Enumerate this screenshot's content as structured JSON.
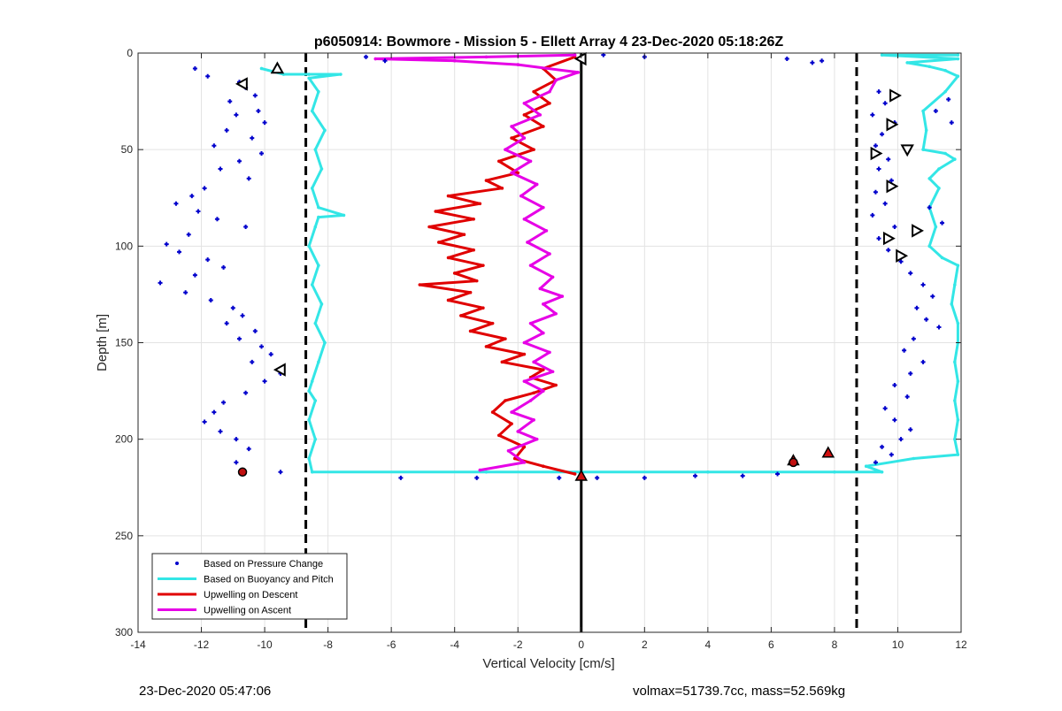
{
  "chart_data": {
    "type": "scatter",
    "title": "p6050914: Bowmore - Mission 5 - Ellett Array 4 23-Dec-2020 05:18:26Z",
    "xlabel": "Vertical Velocity [cm/s]",
    "ylabel": "Depth [m]",
    "xlim": [
      -14,
      12
    ],
    "ylim": [
      0,
      300
    ],
    "y_reversed": true,
    "grid": true,
    "legend_position": "bottom-left",
    "xticks": [
      -14,
      -12,
      -10,
      -8,
      -6,
      -4,
      -2,
      0,
      2,
      4,
      6,
      8,
      10,
      12
    ],
    "yticks": [
      0,
      50,
      100,
      150,
      200,
      250,
      300
    ],
    "series": [
      {
        "name": "Based on Pressure Change",
        "style": "points",
        "color": "#0000cc",
        "points": [
          [
            -12.2,
            8
          ],
          [
            -11.8,
            12
          ],
          [
            -10.8,
            15
          ],
          [
            -10.6,
            18
          ],
          [
            -10.3,
            22
          ],
          [
            -11.1,
            25
          ],
          [
            -10.2,
            30
          ],
          [
            -10.9,
            32
          ],
          [
            -10.0,
            36
          ],
          [
            -11.2,
            40
          ],
          [
            -10.4,
            44
          ],
          [
            -11.6,
            48
          ],
          [
            -10.1,
            52
          ],
          [
            -10.8,
            56
          ],
          [
            -11.4,
            60
          ],
          [
            -10.5,
            65
          ],
          [
            -11.9,
            70
          ],
          [
            -12.3,
            74
          ],
          [
            -12.8,
            78
          ],
          [
            -12.1,
            82
          ],
          [
            -11.5,
            86
          ],
          [
            -10.6,
            90
          ],
          [
            -12.4,
            94
          ],
          [
            -13.1,
            99
          ],
          [
            -12.7,
            103
          ],
          [
            -11.8,
            107
          ],
          [
            -11.3,
            111
          ],
          [
            -12.2,
            115
          ],
          [
            -13.3,
            119
          ],
          [
            -12.5,
            124
          ],
          [
            -11.7,
            128
          ],
          [
            -11.0,
            132
          ],
          [
            -10.7,
            136
          ],
          [
            -11.2,
            140
          ],
          [
            -10.3,
            144
          ],
          [
            -10.8,
            148
          ],
          [
            -10.1,
            152
          ],
          [
            -9.8,
            156
          ],
          [
            -10.4,
            160
          ],
          [
            -9.5,
            166
          ],
          [
            -10.0,
            170
          ],
          [
            -10.6,
            176
          ],
          [
            -11.3,
            181
          ],
          [
            -11.6,
            186
          ],
          [
            -11.9,
            191
          ],
          [
            -11.4,
            196
          ],
          [
            -10.9,
            200
          ],
          [
            -10.5,
            205
          ],
          [
            -10.9,
            212
          ],
          [
            -10.7,
            217
          ],
          [
            -9.5,
            217
          ],
          [
            -6.8,
            2
          ],
          [
            -6.2,
            4
          ],
          [
            -5.7,
            220
          ],
          [
            -3.3,
            220
          ],
          [
            -0.7,
            220
          ],
          [
            0.5,
            220
          ],
          [
            2.0,
            220
          ],
          [
            3.6,
            219
          ],
          [
            5.1,
            219
          ],
          [
            6.2,
            218
          ],
          [
            0.7,
            1
          ],
          [
            2.0,
            2
          ],
          [
            6.5,
            3
          ],
          [
            7.3,
            5
          ],
          [
            7.6,
            4
          ],
          [
            9.4,
            20
          ],
          [
            9.6,
            26
          ],
          [
            9.2,
            32
          ],
          [
            9.9,
            36
          ],
          [
            9.5,
            42
          ],
          [
            9.3,
            48
          ],
          [
            9.7,
            55
          ],
          [
            9.4,
            60
          ],
          [
            9.8,
            66
          ],
          [
            9.3,
            72
          ],
          [
            9.6,
            78
          ],
          [
            9.2,
            84
          ],
          [
            9.9,
            90
          ],
          [
            9.4,
            96
          ],
          [
            9.7,
            102
          ],
          [
            10.1,
            108
          ],
          [
            10.4,
            114
          ],
          [
            10.8,
            120
          ],
          [
            11.1,
            126
          ],
          [
            10.6,
            132
          ],
          [
            10.9,
            138
          ],
          [
            11.3,
            142
          ],
          [
            10.5,
            148
          ],
          [
            10.2,
            154
          ],
          [
            10.8,
            160
          ],
          [
            10.4,
            166
          ],
          [
            9.9,
            172
          ],
          [
            10.3,
            178
          ],
          [
            9.6,
            184
          ],
          [
            9.9,
            190
          ],
          [
            10.4,
            195
          ],
          [
            10.1,
            200
          ],
          [
            9.5,
            204
          ],
          [
            9.8,
            208
          ],
          [
            9.3,
            212
          ],
          [
            11.6,
            24
          ],
          [
            11.2,
            30
          ],
          [
            11.7,
            36
          ],
          [
            11.0,
            80
          ],
          [
            11.4,
            88
          ]
        ]
      },
      {
        "name": "Based on Buoyancy and Pitch",
        "style": "line",
        "color": "#33e6e6",
        "points": [
          [
            -10.1,
            8
          ],
          [
            -9.4,
            11
          ],
          [
            -8.6,
            11
          ],
          [
            -7.6,
            11
          ],
          [
            -8.6,
            13
          ],
          [
            -8.3,
            20
          ],
          [
            -8.5,
            30
          ],
          [
            -8.1,
            40
          ],
          [
            -8.4,
            50
          ],
          [
            -8.2,
            60
          ],
          [
            -8.5,
            70
          ],
          [
            -8.3,
            80
          ],
          [
            -7.5,
            84
          ],
          [
            -8.3,
            85
          ],
          [
            -8.4,
            90
          ],
          [
            -8.6,
            100
          ],
          [
            -8.3,
            110
          ],
          [
            -8.5,
            120
          ],
          [
            -8.2,
            130
          ],
          [
            -8.4,
            140
          ],
          [
            -8.1,
            150
          ],
          [
            -8.3,
            160
          ],
          [
            -8.5,
            170
          ],
          [
            -8.6,
            175
          ],
          [
            -8.4,
            180
          ],
          [
            -8.6,
            190
          ],
          [
            -8.4,
            200
          ],
          [
            -8.6,
            210
          ],
          [
            -8.5,
            217
          ],
          [
            -3.0,
            217
          ],
          [
            0.0,
            217
          ],
          [
            4.0,
            217
          ],
          [
            8.0,
            217
          ],
          [
            9.5,
            217
          ],
          [
            9.0,
            214
          ],
          [
            10.5,
            210
          ],
          [
            11.9,
            208
          ],
          [
            11.8,
            200
          ],
          [
            11.9,
            190
          ],
          [
            11.8,
            180
          ],
          [
            11.9,
            170
          ],
          [
            11.8,
            160
          ],
          [
            11.9,
            150
          ],
          [
            11.9,
            140
          ],
          [
            11.7,
            130
          ],
          [
            11.8,
            120
          ],
          [
            11.9,
            110
          ],
          [
            11.4,
            106
          ],
          [
            11.0,
            100
          ],
          [
            11.2,
            90
          ],
          [
            11.0,
            80
          ],
          [
            11.3,
            70
          ],
          [
            11.0,
            65
          ],
          [
            11.3,
            60
          ],
          [
            11.8,
            55
          ],
          [
            11.5,
            52
          ],
          [
            10.8,
            50
          ],
          [
            10.9,
            40
          ],
          [
            10.8,
            30
          ],
          [
            11.5,
            20
          ],
          [
            11.9,
            12
          ],
          [
            11.5,
            9
          ],
          [
            11.0,
            7
          ],
          [
            10.3,
            5
          ],
          [
            11.9,
            3
          ],
          [
            9.5,
            1
          ],
          [
            11.9,
            1
          ]
        ]
      },
      {
        "name": "Upwelling on Descent",
        "style": "line",
        "color": "#e00000",
        "points": [
          [
            -0.2,
            2
          ],
          [
            -1.2,
            8
          ],
          [
            -0.8,
            14
          ],
          [
            -1.5,
            20
          ],
          [
            -1.0,
            26
          ],
          [
            -1.8,
            32
          ],
          [
            -1.2,
            38
          ],
          [
            -2.2,
            44
          ],
          [
            -1.5,
            50
          ],
          [
            -2.6,
            56
          ],
          [
            -2.0,
            62
          ],
          [
            -3.0,
            66
          ],
          [
            -2.5,
            70
          ],
          [
            -4.2,
            74
          ],
          [
            -3.2,
            78
          ],
          [
            -4.6,
            82
          ],
          [
            -3.4,
            86
          ],
          [
            -4.8,
            90
          ],
          [
            -3.7,
            94
          ],
          [
            -4.5,
            98
          ],
          [
            -3.4,
            102
          ],
          [
            -4.2,
            106
          ],
          [
            -3.1,
            110
          ],
          [
            -4.0,
            114
          ],
          [
            -3.3,
            118
          ],
          [
            -5.1,
            120
          ],
          [
            -3.5,
            124
          ],
          [
            -4.2,
            128
          ],
          [
            -3.1,
            132
          ],
          [
            -3.8,
            136
          ],
          [
            -2.8,
            140
          ],
          [
            -3.5,
            144
          ],
          [
            -2.4,
            148
          ],
          [
            -3.0,
            152
          ],
          [
            -1.8,
            156
          ],
          [
            -2.5,
            160
          ],
          [
            -1.2,
            164
          ],
          [
            -1.6,
            168
          ],
          [
            -0.8,
            172
          ],
          [
            -1.5,
            176
          ],
          [
            -2.4,
            180
          ],
          [
            -2.8,
            186
          ],
          [
            -2.2,
            192
          ],
          [
            -2.6,
            198
          ],
          [
            -1.8,
            204
          ],
          [
            -2.1,
            210
          ],
          [
            -1.2,
            214
          ],
          [
            -0.2,
            218
          ]
        ]
      },
      {
        "name": "Upwelling on Ascent",
        "style": "line",
        "color": "#e600e6",
        "points": [
          [
            -3.2,
            216
          ],
          [
            -1.8,
            212
          ],
          [
            -2.3,
            206
          ],
          [
            -1.4,
            200
          ],
          [
            -2.0,
            196
          ],
          [
            -1.5,
            190
          ],
          [
            -2.2,
            186
          ],
          [
            -1.6,
            180
          ],
          [
            -1.2,
            175
          ],
          [
            -1.8,
            170
          ],
          [
            -0.9,
            165
          ],
          [
            -1.5,
            160
          ],
          [
            -1.0,
            155
          ],
          [
            -1.8,
            150
          ],
          [
            -1.2,
            145
          ],
          [
            -1.6,
            140
          ],
          [
            -0.8,
            135
          ],
          [
            -1.2,
            130
          ],
          [
            -0.6,
            126
          ],
          [
            -1.3,
            122
          ],
          [
            -0.9,
            116
          ],
          [
            -1.6,
            110
          ],
          [
            -1.0,
            104
          ],
          [
            -1.7,
            98
          ],
          [
            -1.1,
            92
          ],
          [
            -1.8,
            86
          ],
          [
            -1.2,
            80
          ],
          [
            -1.9,
            74
          ],
          [
            -1.4,
            68
          ],
          [
            -2.2,
            62
          ],
          [
            -1.6,
            56
          ],
          [
            -2.4,
            50
          ],
          [
            -1.8,
            44
          ],
          [
            -2.2,
            38
          ],
          [
            -1.3,
            32
          ],
          [
            -1.8,
            26
          ],
          [
            -1.0,
            20
          ],
          [
            -0.8,
            14
          ],
          [
            -0.1,
            10
          ],
          [
            -2.0,
            6
          ],
          [
            -4.0,
            4
          ],
          [
            -6.5,
            3
          ],
          [
            -3.0,
            2
          ],
          [
            -0.2,
            1
          ]
        ]
      }
    ],
    "markers": [
      {
        "kind": "open-triangle-up",
        "points": [
          [
            -9.6,
            8
          ]
        ]
      },
      {
        "kind": "open-triangle-left",
        "points": [
          [
            -10.7,
            16
          ],
          [
            -9.5,
            164
          ],
          [
            0.0,
            3
          ]
        ]
      },
      {
        "kind": "open-triangle-right",
        "points": [
          [
            9.9,
            22
          ],
          [
            9.8,
            37
          ],
          [
            9.3,
            52
          ],
          [
            9.8,
            69
          ],
          [
            9.7,
            96
          ],
          [
            10.6,
            92
          ],
          [
            10.1,
            105
          ]
        ]
      },
      {
        "kind": "open-triangle-down",
        "points": [
          [
            10.3,
            50
          ]
        ]
      },
      {
        "kind": "filled-triangle-up",
        "points": [
          [
            0.0,
            219
          ],
          [
            7.8,
            207
          ],
          [
            6.7,
            211
          ]
        ]
      },
      {
        "kind": "filled-star",
        "points": [
          [
            -10.7,
            217
          ],
          [
            6.7,
            212
          ]
        ]
      }
    ],
    "reference_lines": [
      {
        "orientation": "vertical",
        "x": 0,
        "style": "solid"
      },
      {
        "orientation": "vertical",
        "x": -8.7,
        "style": "dashed"
      },
      {
        "orientation": "vertical",
        "x": 8.7,
        "style": "dashed"
      }
    ]
  },
  "footer": {
    "left": "23-Dec-2020 05:47:06",
    "right": "volmax=51739.7cc, mass=52.569kg"
  }
}
